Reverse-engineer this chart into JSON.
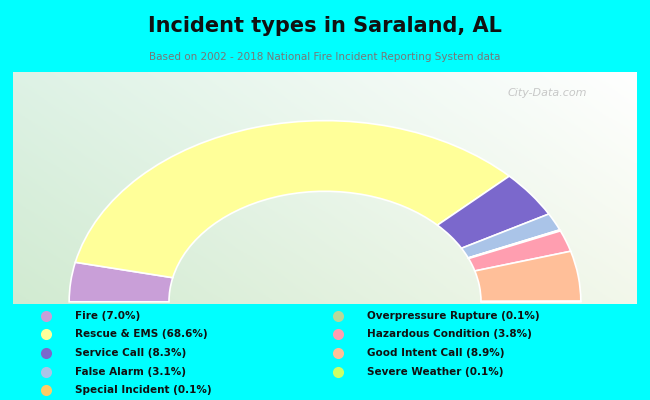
{
  "title": "Incident types in Saraland, AL",
  "subtitle": "Based on 2002 - 2018 National Fire Incident Reporting System data",
  "background_color": "#00FFFF",
  "watermark": "City-Data.com",
  "segments": [
    {
      "label": "Fire",
      "value": 7.0,
      "color": "#c99fd8"
    },
    {
      "label": "Rescue & EMS",
      "value": 68.6,
      "color": "#ffff99"
    },
    {
      "label": "Service Call",
      "value": 8.3,
      "color": "#7b68cc"
    },
    {
      "label": "False Alarm",
      "value": 3.1,
      "color": "#aac4e8"
    },
    {
      "label": "Special Incident",
      "value": 0.1,
      "color": "#ffcc66"
    },
    {
      "label": "Overpressure Rupture",
      "value": 0.1,
      "color": "#b8d89a"
    },
    {
      "label": "Hazardous Condition",
      "value": 3.8,
      "color": "#ff9eb0"
    },
    {
      "label": "Good Intent Call",
      "value": 8.9,
      "color": "#ffbf99"
    },
    {
      "label": "Severe Weather",
      "value": 0.1,
      "color": "#ccff66"
    }
  ],
  "legend_left": [
    {
      "label": "Fire (7.0%)",
      "color": "#c99fd8"
    },
    {
      "label": "Rescue & EMS (68.6%)",
      "color": "#ffff99"
    },
    {
      "label": "Service Call (8.3%)",
      "color": "#7b68cc"
    },
    {
      "label": "False Alarm (3.1%)",
      "color": "#aac4e8"
    },
    {
      "label": "Special Incident (0.1%)",
      "color": "#ffcc66"
    }
  ],
  "legend_right": [
    {
      "label": "Overpressure Rupture (0.1%)",
      "color": "#b8d89a"
    },
    {
      "label": "Hazardous Condition (3.8%)",
      "color": "#ff9eb0"
    },
    {
      "label": "Good Intent Call (8.9%)",
      "color": "#ffbf99"
    },
    {
      "label": "Severe Weather (0.1%)",
      "color": "#ccff66"
    }
  ]
}
